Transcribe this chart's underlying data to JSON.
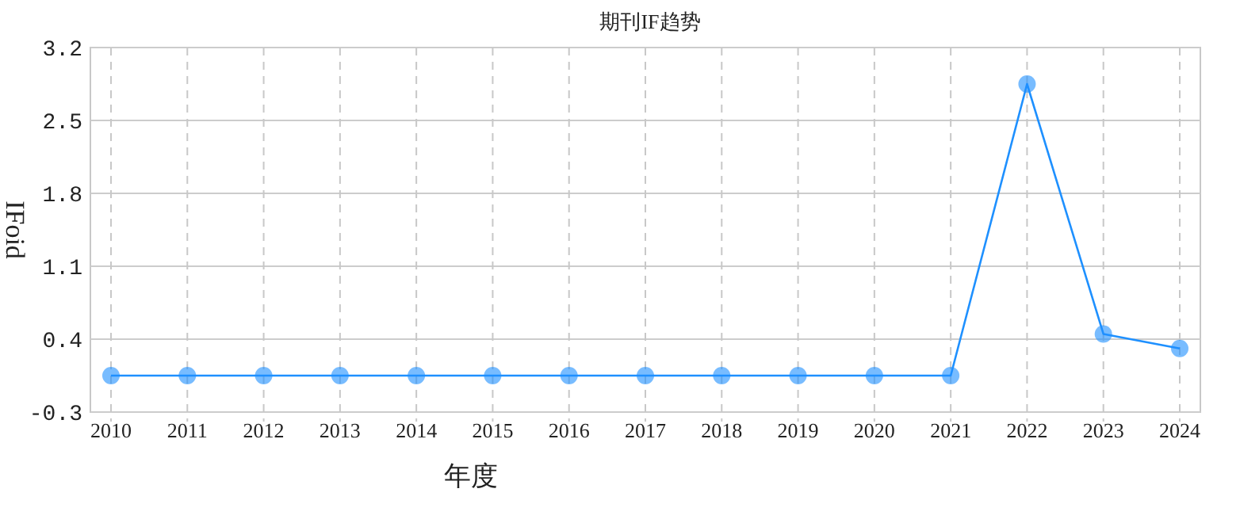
{
  "chart_data": {
    "type": "line",
    "title": "期刊IF趋势",
    "xlabel": "年度",
    "ylabel": "IFoid",
    "categories": [
      "2010",
      "2011",
      "2012",
      "2013",
      "2014",
      "2015",
      "2016",
      "2017",
      "2018",
      "2019",
      "2020",
      "2021",
      "2022",
      "2023",
      "2024"
    ],
    "series": [
      {
        "color": "#1e90ff",
        "values": [
          0.05,
          0.05,
          0.05,
          0.05,
          0.05,
          0.05,
          0.05,
          0.05,
          0.05,
          0.05,
          0.05,
          0.05,
          2.85,
          0.45,
          0.31
        ]
      }
    ],
    "ylim": [
      -0.3,
      3.2
    ],
    "yticks": [
      -0.3,
      0.4,
      1.1,
      1.8,
      2.5,
      3.2
    ],
    "grid": true,
    "marker": "circle",
    "line_style": "solid"
  }
}
